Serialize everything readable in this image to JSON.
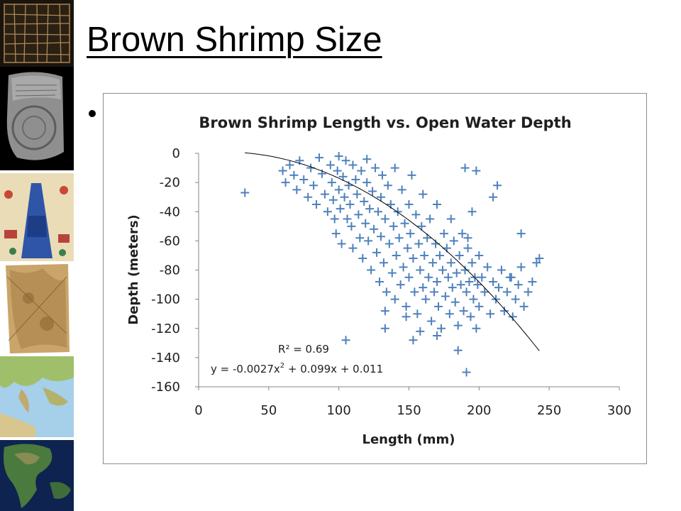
{
  "slide": {
    "title": "Brown Shrimp Size"
  },
  "sidebar": {
    "thumbnails": [
      {
        "icon": "grid-map-icon"
      },
      {
        "icon": "clay-tablet-map-icon"
      },
      {
        "icon": "illuminated-map-icon"
      },
      {
        "icon": "parchment-map-icon"
      },
      {
        "icon": "mediterranean-map-icon"
      },
      {
        "icon": "globe-americas-icon"
      }
    ]
  },
  "colors": {
    "marker": "#4f81bd",
    "trendline": "#000000",
    "frame": "#8c8c8c"
  },
  "chart_data": {
    "type": "scatter",
    "title": "Brown Shrimp Length vs. Open Water Depth",
    "xlabel": "Length (mm)",
    "ylabel": "Depth (meters)",
    "xlim": [
      0,
      300
    ],
    "ylim": [
      -160,
      0
    ],
    "xticks": [
      "0",
      "50",
      "100",
      "150",
      "200",
      "250",
      "300"
    ],
    "yticks": [
      "0",
      "-20",
      "-40",
      "-60",
      "-80",
      "-100",
      "-120",
      "-140",
      "-160"
    ],
    "grid": false,
    "legend": "none",
    "marker": "plus",
    "series": [
      {
        "points": [
          [
            33,
            -27
          ],
          [
            60,
            -12
          ],
          [
            62,
            -20
          ],
          [
            65,
            -8
          ],
          [
            68,
            -15
          ],
          [
            70,
            -25
          ],
          [
            72,
            -5
          ],
          [
            75,
            -18
          ],
          [
            78,
            -30
          ],
          [
            80,
            -10
          ],
          [
            82,
            -22
          ],
          [
            84,
            -35
          ],
          [
            86,
            -3
          ],
          [
            88,
            -14
          ],
          [
            90,
            -28
          ],
          [
            92,
            -40
          ],
          [
            94,
            -8
          ],
          [
            95,
            -20
          ],
          [
            96,
            -32
          ],
          [
            97,
            -45
          ],
          [
            98,
            -55
          ],
          [
            99,
            -12
          ],
          [
            100,
            -2
          ],
          [
            100,
            -25
          ],
          [
            101,
            -38
          ],
          [
            102,
            -62
          ],
          [
            103,
            -16
          ],
          [
            104,
            -30
          ],
          [
            105,
            -5
          ],
          [
            106,
            -45
          ],
          [
            107,
            -22
          ],
          [
            108,
            -35
          ],
          [
            109,
            -50
          ],
          [
            110,
            -8
          ],
          [
            110,
            -65
          ],
          [
            112,
            -18
          ],
          [
            113,
            -28
          ],
          [
            114,
            -42
          ],
          [
            115,
            -58
          ],
          [
            116,
            -12
          ],
          [
            117,
            -72
          ],
          [
            118,
            -33
          ],
          [
            119,
            -48
          ],
          [
            120,
            -4
          ],
          [
            120,
            -20
          ],
          [
            121,
            -60
          ],
          [
            122,
            -38
          ],
          [
            123,
            -80
          ],
          [
            124,
            -26
          ],
          [
            125,
            -52
          ],
          [
            126,
            -10
          ],
          [
            127,
            -68
          ],
          [
            128,
            -40
          ],
          [
            129,
            -88
          ],
          [
            130,
            -30
          ],
          [
            130,
            -57
          ],
          [
            131,
            -15
          ],
          [
            132,
            -75
          ],
          [
            133,
            -45
          ],
          [
            134,
            -95
          ],
          [
            135,
            -22
          ],
          [
            136,
            -62
          ],
          [
            137,
            -35
          ],
          [
            138,
            -82
          ],
          [
            139,
            -50
          ],
          [
            140,
            -10
          ],
          [
            140,
            -100
          ],
          [
            141,
            -70
          ],
          [
            142,
            -40
          ],
          [
            143,
            -58
          ],
          [
            144,
            -90
          ],
          [
            145,
            -25
          ],
          [
            146,
            -78
          ],
          [
            147,
            -48
          ],
          [
            148,
            -105
          ],
          [
            149,
            -65
          ],
          [
            150,
            -35
          ],
          [
            150,
            -85
          ],
          [
            151,
            -55
          ],
          [
            152,
            -15
          ],
          [
            153,
            -72
          ],
          [
            154,
            -95
          ],
          [
            155,
            -42
          ],
          [
            156,
            -110
          ],
          [
            157,
            -62
          ],
          [
            158,
            -80
          ],
          [
            159,
            -50
          ],
          [
            160,
            -28
          ],
          [
            160,
            -92
          ],
          [
            161,
            -70
          ],
          [
            162,
            -100
          ],
          [
            163,
            -58
          ],
          [
            164,
            -85
          ],
          [
            165,
            -45
          ],
          [
            166,
            -115
          ],
          [
            167,
            -75
          ],
          [
            168,
            -95
          ],
          [
            169,
            -62
          ],
          [
            170,
            -35
          ],
          [
            170,
            -88
          ],
          [
            171,
            -105
          ],
          [
            172,
            -70
          ],
          [
            173,
            -120
          ],
          [
            174,
            -80
          ],
          [
            175,
            -55
          ],
          [
            176,
            -98
          ],
          [
            177,
            -65
          ],
          [
            178,
            -85
          ],
          [
            179,
            -110
          ],
          [
            180,
            -45
          ],
          [
            180,
            -75
          ],
          [
            181,
            -92
          ],
          [
            182,
            -60
          ],
          [
            183,
            -102
          ],
          [
            184,
            -82
          ],
          [
            185,
            -118
          ],
          [
            186,
            -70
          ],
          [
            187,
            -90
          ],
          [
            188,
            -55
          ],
          [
            189,
            -108
          ],
          [
            190,
            -80
          ],
          [
            191,
            -95
          ],
          [
            192,
            -65
          ],
          [
            193,
            -88
          ],
          [
            194,
            -112
          ],
          [
            195,
            -75
          ],
          [
            196,
            -100
          ],
          [
            197,
            -85
          ],
          [
            198,
            -120
          ],
          [
            199,
            -90
          ],
          [
            200,
            -70
          ],
          [
            200,
            -105
          ],
          [
            202,
            -85
          ],
          [
            204,
            -95
          ],
          [
            206,
            -78
          ],
          [
            208,
            -110
          ],
          [
            210,
            -88
          ],
          [
            212,
            -100
          ],
          [
            214,
            -92
          ],
          [
            216,
            -80
          ],
          [
            218,
            -108
          ],
          [
            220,
            -95
          ],
          [
            222,
            -85
          ],
          [
            224,
            -112
          ],
          [
            226,
            -100
          ],
          [
            228,
            -90
          ],
          [
            230,
            -78
          ],
          [
            232,
            -105
          ],
          [
            235,
            -95
          ],
          [
            238,
            -88
          ],
          [
            241,
            -75
          ],
          [
            243,
            -72
          ],
          [
            133,
            -108
          ],
          [
            148,
            -112
          ],
          [
            153,
            -128
          ],
          [
            158,
            -122
          ],
          [
            170,
            -125
          ],
          [
            185,
            -135
          ],
          [
            191,
            -150
          ],
          [
            105,
            -128
          ],
          [
            133,
            -120
          ],
          [
            190,
            -10
          ],
          [
            198,
            -12
          ],
          [
            213,
            -22
          ],
          [
            210,
            -30
          ],
          [
            192,
            -58
          ],
          [
            195,
            -40
          ],
          [
            223,
            -85
          ],
          [
            230,
            -55
          ]
        ]
      }
    ],
    "trendline": {
      "r2_label": "R² = 0.69",
      "equation_main": "y = -0.0027x",
      "equation_sup": "2",
      "equation_rest": " + 0.099x + 0.011",
      "coefficients": [
        -0.0027,
        0.099,
        0.011
      ],
      "x_range": [
        33,
        243
      ]
    }
  }
}
